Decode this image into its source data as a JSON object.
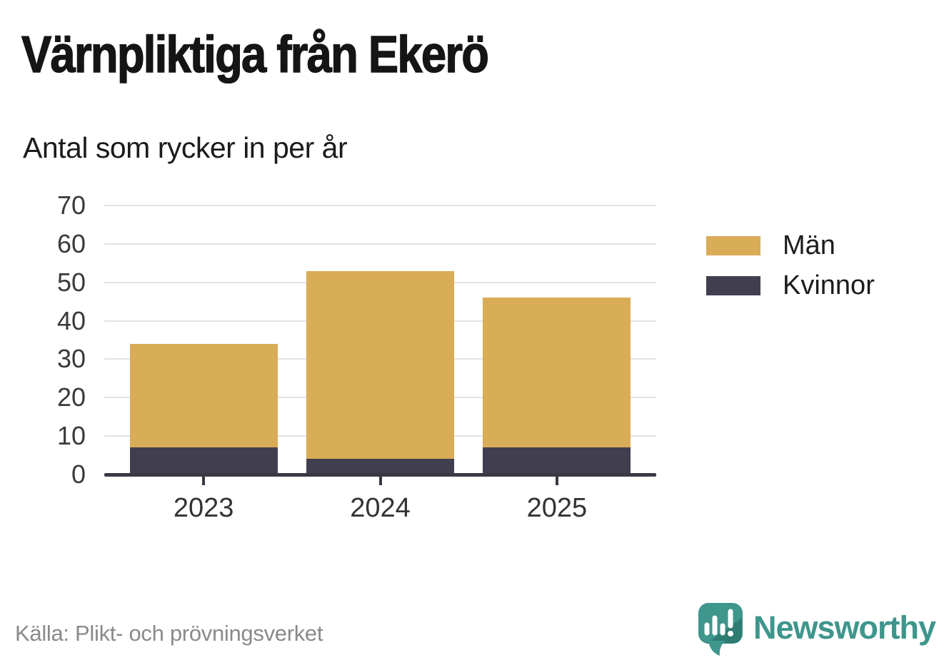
{
  "header": {
    "title": "Värnpliktiga från Ekerö",
    "subtitle": "Antal som rycker in per år"
  },
  "chart_data": {
    "type": "bar",
    "stacked": true,
    "categories": [
      "2023",
      "2024",
      "2025"
    ],
    "series": [
      {
        "name": "Män",
        "color": "#D9AC57",
        "values": [
          27,
          49,
          39
        ]
      },
      {
        "name": "Kvinnor",
        "color": "#413F4F",
        "values": [
          7,
          4,
          7
        ]
      }
    ],
    "stack_totals": [
      34,
      53,
      46
    ],
    "title": "Värnpliktiga från Ekerö",
    "subtitle": "Antal som rycker in per år",
    "xlabel": "",
    "ylabel": "",
    "ylim": [
      0,
      70
    ],
    "yticks": [
      0,
      10,
      20,
      30,
      40,
      50,
      60,
      70
    ],
    "grid": true,
    "legend_position": "right"
  },
  "legend": {
    "items": [
      {
        "label": "Män",
        "color": "#D9AC57"
      },
      {
        "label": "Kvinnor",
        "color": "#413F4F"
      }
    ]
  },
  "footer": {
    "source": "Källa: Plikt- och prövningsverket",
    "brand": "Newsworthy"
  },
  "colors": {
    "bar_men": "#D9AC57",
    "bar_women": "#413F4F",
    "gridline": "#E3E3E3",
    "axis": "#3B3845",
    "tick_label": "#3A3A3A",
    "brand_teal": "#3E968C",
    "brand_teal_dark": "#2F7C73",
    "source_text": "#8A8A8A"
  }
}
